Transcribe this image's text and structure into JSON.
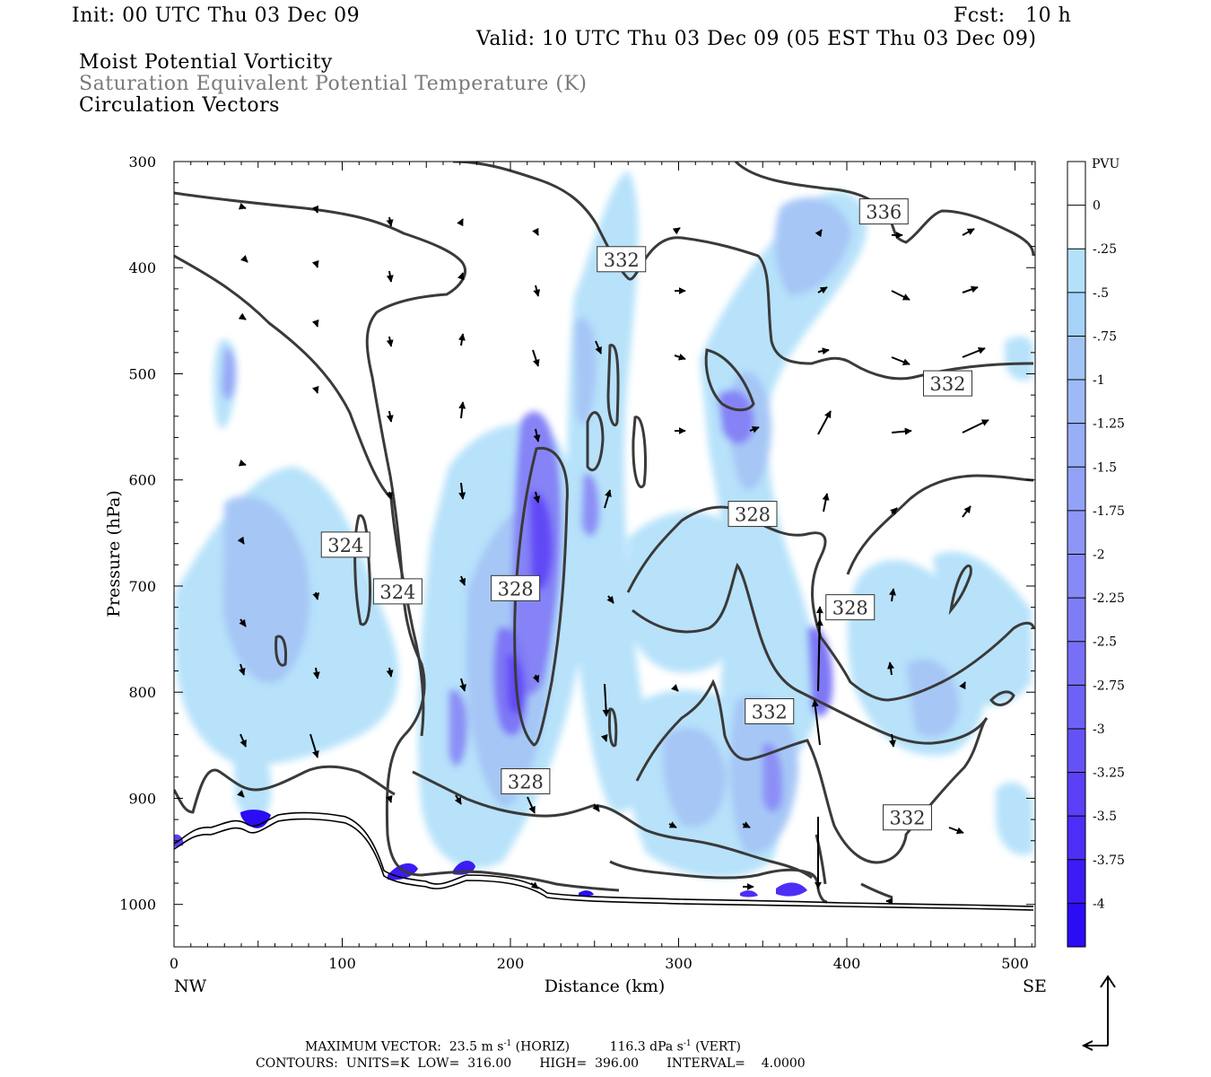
{
  "header": {
    "init": "Init: 00 UTC Thu 03 Dec 09",
    "fcst": "Fcst:   10 h",
    "valid": "Valid: 10 UTC Thu 03 Dec 09 (05 EST Thu 03 Dec 09)",
    "field1": "Moist Potential Vorticity",
    "field2": "Saturation Equivalent Potential Temperature (K)",
    "field3": "Circulation Vectors"
  },
  "footer": {
    "max_vector_label": "MAXIMUM VECTOR:",
    "horiz": "23.5 m s",
    "horiz_exp": "-1",
    "horiz_unit": " (HORIZ)",
    "vert": "116.3 dPa s",
    "vert_exp": "-1",
    "vert_unit": " (VERT)",
    "contours": "CONTOURS:  UNITS=K  LOW=  316.00       HIGH=  396.00       INTERVAL=    4.0000"
  },
  "colors": {
    "contour": "#3a3a3a",
    "frame": "#000000"
  },
  "chart_data": {
    "type": "contour",
    "xlabel": "Distance (km)",
    "ylabel": "Pressure (hPa)",
    "xlim": [
      0,
      512
    ],
    "ylim": [
      1040,
      300
    ],
    "x_ticks": [
      "0",
      "100",
      "200",
      "300",
      "400",
      "500"
    ],
    "y_ticks": [
      "300",
      "400",
      "500",
      "600",
      "700",
      "800",
      "900",
      "1000"
    ],
    "x_end_labels": {
      "left": "NW",
      "right": "SE"
    },
    "colorbar": {
      "title": "PVU",
      "levels": [
        "0",
        "-.25",
        "-.5",
        "-.75",
        "-1",
        "-1.25",
        "-1.5",
        "-1.75",
        "-2",
        "-2.25",
        "-2.5",
        "-2.75",
        "-3",
        "-3.25",
        "-3.5",
        "-3.75",
        "-4"
      ],
      "colors": [
        "#ffffff",
        "#ffffff",
        "#b4e1fa",
        "#a6d3f8",
        "#a2c5f6",
        "#9ebaf6",
        "#98aef6",
        "#93a2f6",
        "#8d96f6",
        "#868af6",
        "#7f7df6",
        "#7770f6",
        "#6e62f6",
        "#6452f6",
        "#5a40f6",
        "#4d2ef6",
        "#3c1bf6",
        "#2b0cf4"
      ]
    },
    "contour_labels": [
      {
        "text": "336",
        "x": 422,
        "p": 347
      },
      {
        "text": "332",
        "x": 266,
        "p": 392
      },
      {
        "text": "332",
        "x": 460,
        "p": 509
      },
      {
        "text": "328",
        "x": 344,
        "p": 632
      },
      {
        "text": "324",
        "x": 102,
        "p": 661
      },
      {
        "text": "324",
        "x": 133,
        "p": 705
      },
      {
        "text": "328",
        "x": 203,
        "p": 702
      },
      {
        "text": "328",
        "x": 402,
        "p": 720
      },
      {
        "text": "332",
        "x": 354,
        "p": 818
      },
      {
        "text": "328",
        "x": 209,
        "p": 884
      },
      {
        "text": "332",
        "x": 436,
        "p": 918
      }
    ]
  }
}
